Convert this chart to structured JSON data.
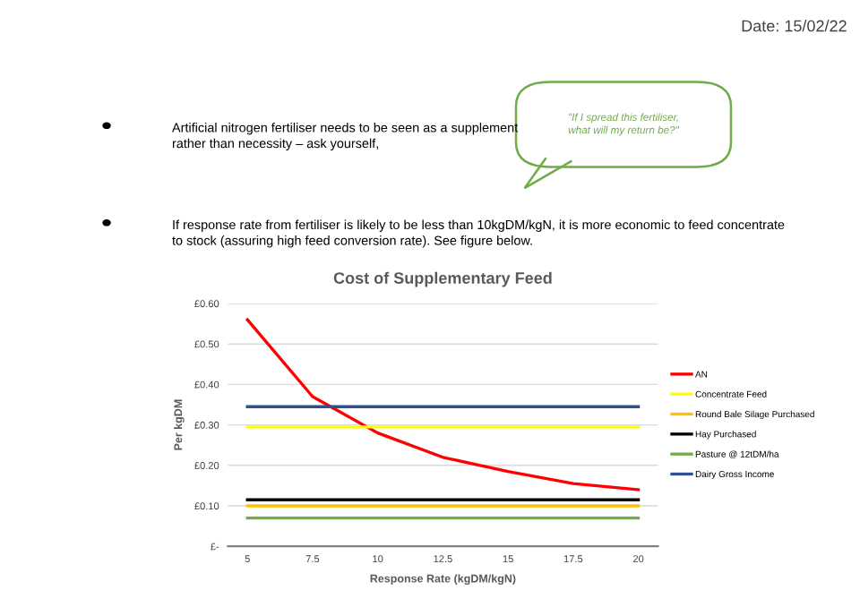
{
  "chart_data": {
    "type": "line",
    "title": "Cost of Supplementary Feed",
    "xlabel": "Response Rate (kgDM/kgN)",
    "ylabel": "Per kgDM",
    "categories": [
      "5",
      "7.5",
      "10",
      "12.5",
      "15",
      "17.5",
      "20"
    ],
    "series": [
      {
        "name": "AN",
        "color": "#ff0000",
        "values": [
          0.56,
          0.37,
          0.28,
          0.22,
          0.185,
          0.155,
          0.14
        ]
      },
      {
        "name": "Concentrate Feed",
        "color": "#ffff00",
        "values": [
          0.295,
          0.295,
          0.295,
          0.295,
          0.295,
          0.295,
          0.295
        ]
      },
      {
        "name": "Round Bale Silage Purchased",
        "color": "#ffc000",
        "values": [
          0.1,
          0.1,
          0.1,
          0.1,
          0.1,
          0.1,
          0.1
        ]
      },
      {
        "name": "Hay Purchased",
        "color": "#000000",
        "values": [
          0.115,
          0.115,
          0.115,
          0.115,
          0.115,
          0.115,
          0.115
        ]
      },
      {
        "name": "Pasture @ 12tDM/ha",
        "color": "#70ad47",
        "values": [
          0.07,
          0.07,
          0.07,
          0.07,
          0.07,
          0.07,
          0.07
        ]
      },
      {
        "name": "Dairy Gross Income",
        "color": "#2f4f8f",
        "values": [
          0.345,
          0.345,
          0.345,
          0.345,
          0.345,
          0.345,
          0.345
        ]
      }
    ],
    "ylim": [
      0,
      0.6
    ],
    "yticks": [
      {
        "value": 0,
        "label": "£-"
      },
      {
        "value": 0.1,
        "label": "£0.10"
      },
      {
        "value": 0.2,
        "label": "£0.20"
      },
      {
        "value": 0.3,
        "label": "£0.30"
      },
      {
        "value": 0.4,
        "label": "£0.40"
      },
      {
        "value": 0.5,
        "label": "£0.50"
      },
      {
        "value": 0.6,
        "label": "£0.60"
      }
    ],
    "grid": "y",
    "legend": "right",
    "marker": "none",
    "line_style": "solid",
    "annotations": [
      "Date: 15/02/22",
      "Artificial nitrogen fertiliser needs to be seen as a supplement\nrather than necessity – ask yourself,",
      "\"If I spread this fertiliser,\nwhat will my return be?\"",
      "If response rate from fertiliser is likely to be less than 10kgDM/kgN, it is more economic to feed concentrate\nto stock (assuring high feed conversion rate). See figure below."
    ]
  }
}
